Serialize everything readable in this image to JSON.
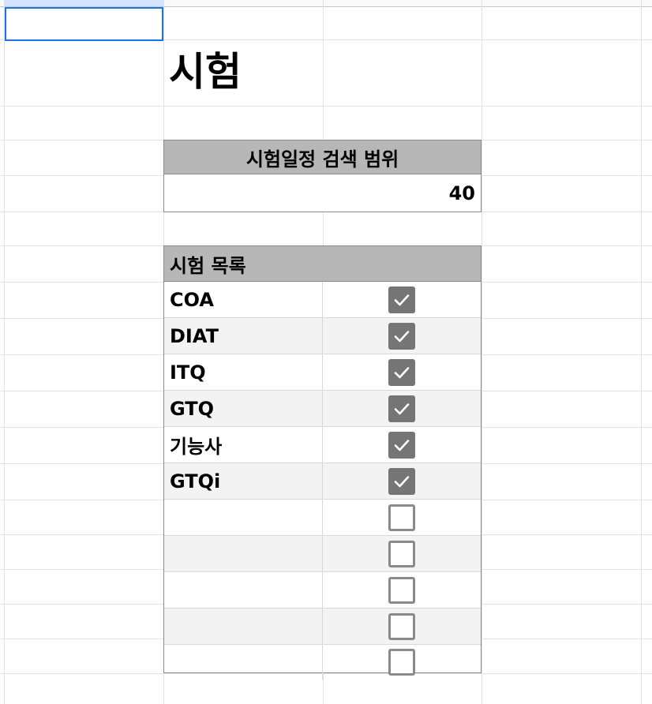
{
  "sheet": {
    "title": "시험",
    "search_range": {
      "label": "시험일정 검색 범위",
      "value": "40"
    },
    "exam_list": {
      "header": "시험 목록",
      "rows": [
        {
          "name": "COA",
          "checked": true
        },
        {
          "name": "DIAT",
          "checked": true
        },
        {
          "name": "ITQ",
          "checked": true
        },
        {
          "name": "GTQ",
          "checked": true
        },
        {
          "name": "기능사",
          "checked": true
        },
        {
          "name": "GTQi",
          "checked": true
        },
        {
          "name": "",
          "checked": false
        },
        {
          "name": "",
          "checked": false
        },
        {
          "name": "",
          "checked": false
        },
        {
          "name": "",
          "checked": false
        },
        {
          "name": "",
          "checked": false
        }
      ]
    }
  },
  "colors": {
    "header_fill": "#b7b7b7",
    "checkbox_on": "#757575",
    "checkbox_off_border": "#8a8a8a",
    "alt_row": "#f3f3f3",
    "selection": "#1a73e8",
    "gridline": "#e2e2e2"
  },
  "icons": {
    "checked": "checkmark-icon",
    "unchecked": "empty-checkbox-icon"
  }
}
